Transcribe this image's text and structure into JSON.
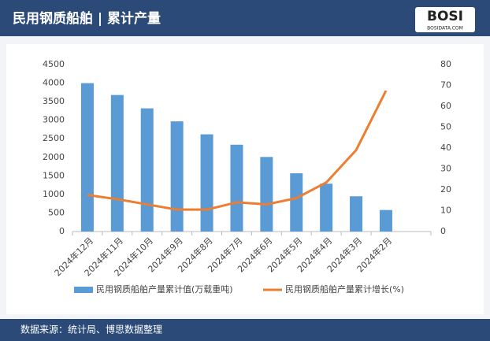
{
  "chart_data": {
    "type": "bar-line",
    "title": "民用钢质船舶 | 累计产量",
    "logo": "BOSI",
    "logo_sub": "BOSIDATA.COM",
    "source": "数据来源：统计局、博思数据整理",
    "categories": [
      "2024年12月",
      "2024年11月",
      "2024年10月",
      "2024年9月",
      "2024年8月",
      "2024年7月",
      "2024年6月",
      "2024年5月",
      "2024年4月",
      "2024年3月",
      "2024年2月"
    ],
    "series": [
      {
        "name": "民用钢质船舶产量累计值(万载重吨)",
        "type": "bar",
        "color": "#5b9bd5",
        "values": [
          4000,
          3680,
          3320,
          2970,
          2620,
          2340,
          2010,
          1570,
          1290,
          950,
          580
        ]
      },
      {
        "name": "民用钢质船舶产量累计增长(%)",
        "type": "line",
        "axis": "y2",
        "color": "#ed7d31",
        "values": [
          17.5,
          15.5,
          13,
          10.5,
          10.5,
          14,
          13,
          16,
          23.5,
          39,
          67.5
        ]
      }
    ],
    "ylim": [
      0,
      4500
    ],
    "yticks": [
      0,
      500,
      1000,
      1500,
      2000,
      2500,
      3000,
      3500,
      4000,
      4500
    ],
    "y2lim": [
      0,
      80
    ],
    "y2ticks": [
      0,
      10,
      20,
      30,
      40,
      50,
      60,
      70,
      80
    ],
    "legend": "bottom"
  }
}
